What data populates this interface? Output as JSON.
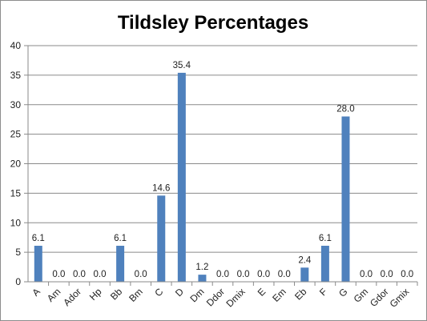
{
  "chart_data": {
    "type": "bar",
    "title": "Tildsley Percentages",
    "categories": [
      "A",
      "Am",
      "Ador",
      "Hp",
      "Bb",
      "Bm",
      "C",
      "D",
      "Dm",
      "Ddor",
      "Dmix",
      "E",
      "Em",
      "Eb",
      "F",
      "G",
      "Gm",
      "Gdor",
      "Gmix"
    ],
    "values": [
      6.1,
      0.0,
      0.0,
      0.0,
      6.1,
      0.0,
      14.6,
      35.4,
      1.2,
      0.0,
      0.0,
      0.0,
      0.0,
      2.4,
      6.1,
      28.0,
      0.0,
      0.0,
      0.0
    ],
    "data_labels": [
      "6.1",
      "0.0",
      "0.0",
      "0.0",
      "6.1",
      "0.0",
      "14.6",
      "35.4",
      "1.2",
      "0.0",
      "0.0",
      "0.0",
      "0.0",
      "2.4",
      "6.1",
      "28.0",
      "0.0",
      "0.0",
      "0.0"
    ],
    "ylim": [
      0,
      40
    ],
    "yticks": [
      "0",
      "5",
      "10",
      "15",
      "20",
      "25",
      "30",
      "35",
      "40"
    ],
    "grid": true,
    "legend": "none",
    "bar_color": "#4f81bd"
  }
}
